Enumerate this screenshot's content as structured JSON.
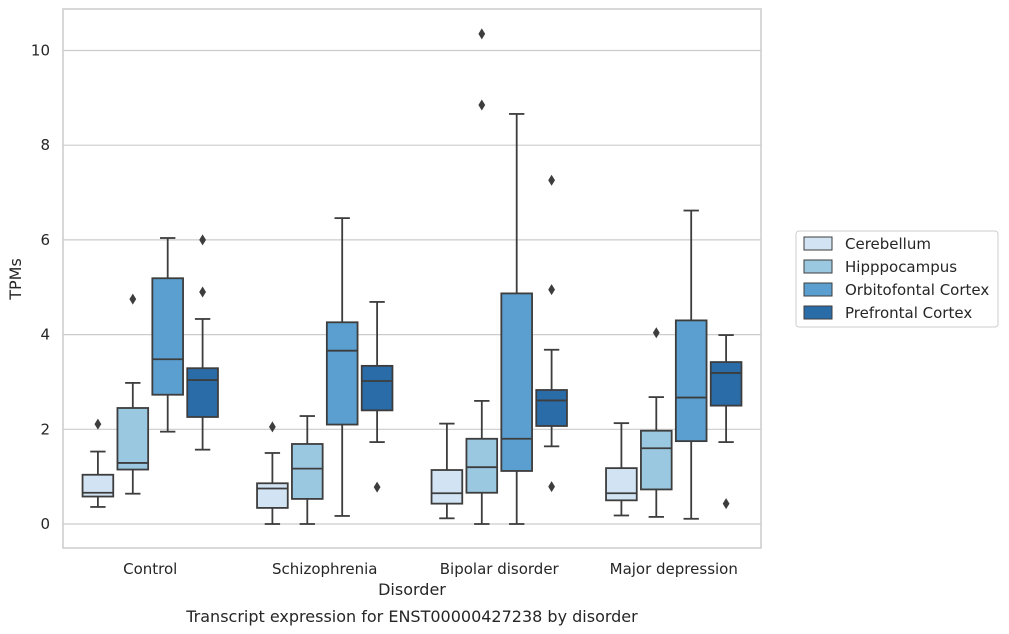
{
  "chart_data": {
    "type": "box",
    "title": "",
    "caption": "Transcript expression for ENST00000427238 by disorder",
    "xlabel": "Disorder",
    "ylabel": "TPMs",
    "ylim": [
      -0.5,
      10.85
    ],
    "yticks": [
      0,
      2,
      4,
      6,
      8,
      10
    ],
    "grid": "horizontal",
    "legend_position": "right",
    "categories": [
      "Control",
      "Schizophrenia",
      "Bipolar disorder",
      "Major depression"
    ],
    "series": [
      {
        "name": "Cerebellum",
        "color": "#d2e3f3",
        "boxes": [
          {
            "whislo": 0.36,
            "q1": 0.58,
            "med": 0.66,
            "q3": 1.04,
            "whishi": 1.53,
            "fliers": [
              2.11
            ]
          },
          {
            "whislo": 0.0,
            "q1": 0.34,
            "med": 0.75,
            "q3": 0.86,
            "whishi": 1.5,
            "fliers": [
              2.05
            ]
          },
          {
            "whislo": 0.12,
            "q1": 0.43,
            "med": 0.65,
            "q3": 1.14,
            "whishi": 2.12,
            "fliers": []
          },
          {
            "whislo": 0.18,
            "q1": 0.5,
            "med": 0.65,
            "q3": 1.18,
            "whishi": 2.13,
            "fliers": []
          }
        ]
      },
      {
        "name": "Hipppocampus",
        "color": "#9ac8e0",
        "boxes": [
          {
            "whislo": 0.64,
            "q1": 1.15,
            "med": 1.29,
            "q3": 2.45,
            "whishi": 2.98,
            "fliers": [
              4.75
            ]
          },
          {
            "whislo": 0.0,
            "q1": 0.53,
            "med": 1.17,
            "q3": 1.69,
            "whishi": 2.28,
            "fliers": []
          },
          {
            "whislo": 0.0,
            "q1": 0.66,
            "med": 1.2,
            "q3": 1.8,
            "whishi": 2.6,
            "fliers": [
              10.35,
              8.85
            ]
          },
          {
            "whislo": 0.15,
            "q1": 0.73,
            "med": 1.6,
            "q3": 1.97,
            "whishi": 2.68,
            "fliers": [
              4.04
            ]
          }
        ]
      },
      {
        "name": "Orbitofontal Cortex",
        "color": "#5a9fcf",
        "boxes": [
          {
            "whislo": 1.95,
            "q1": 2.73,
            "med": 3.48,
            "q3": 5.19,
            "whishi": 6.04,
            "fliers": []
          },
          {
            "whislo": 0.17,
            "q1": 2.1,
            "med": 3.66,
            "q3": 4.26,
            "whishi": 6.46,
            "fliers": []
          },
          {
            "whislo": 0.0,
            "q1": 1.12,
            "med": 1.8,
            "q3": 4.87,
            "whishi": 8.66,
            "fliers": []
          },
          {
            "whislo": 0.11,
            "q1": 1.75,
            "med": 2.67,
            "q3": 4.3,
            "whishi": 6.62,
            "fliers": []
          }
        ]
      },
      {
        "name": "Prefrontal Cortex",
        "color": "#2a6ca8",
        "boxes": [
          {
            "whislo": 1.57,
            "q1": 2.26,
            "med": 3.04,
            "q3": 3.29,
            "whishi": 4.33,
            "fliers": [
              6.0,
              4.9
            ]
          },
          {
            "whislo": 1.73,
            "q1": 2.4,
            "med": 3.02,
            "q3": 3.34,
            "whishi": 4.69,
            "fliers": [
              0.78
            ]
          },
          {
            "whislo": 1.64,
            "q1": 2.07,
            "med": 2.61,
            "q3": 2.83,
            "whishi": 3.68,
            "fliers": [
              7.26,
              4.95,
              0.79
            ]
          },
          {
            "whislo": 1.73,
            "q1": 2.5,
            "med": 3.19,
            "q3": 3.42,
            "whishi": 3.99,
            "fliers": [
              0.43
            ]
          }
        ]
      }
    ]
  }
}
